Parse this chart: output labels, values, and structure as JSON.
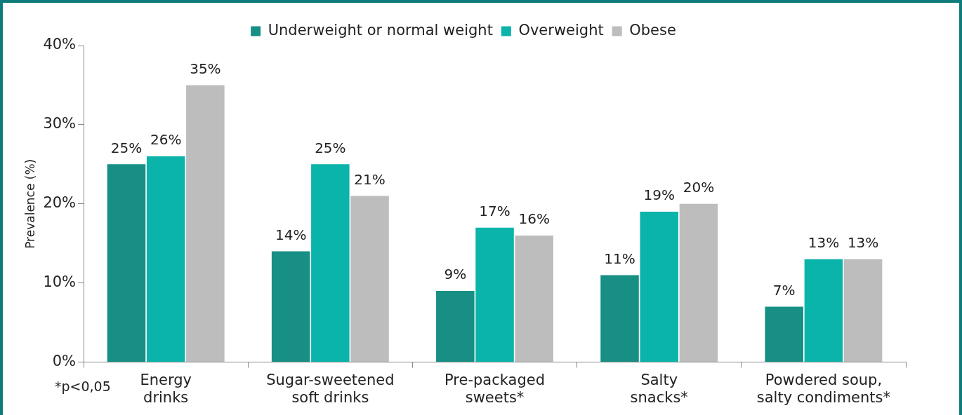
{
  "chart_data": {
    "type": "bar",
    "categories": [
      "Energy drinks",
      "Sugar-sweetened soft drinks",
      "Pre-packaged sweets*",
      "Salty snacks*",
      "Powdered soup, salty condiments*"
    ],
    "ylabel": "Prevalence (%)",
    "ylim": [
      0,
      40
    ],
    "yticks": [
      {
        "value": 0,
        "label": "0%"
      },
      {
        "value": 10,
        "label": "10%"
      },
      {
        "value": 20,
        "label": "20%"
      },
      {
        "value": 30,
        "label": "30%"
      },
      {
        "value": 40,
        "label": "40%"
      }
    ],
    "series": [
      {
        "name": "Underweight or normal weight",
        "color": "#178f84",
        "values": [
          25,
          14,
          9,
          11,
          7
        ],
        "value_labels": [
          "25%",
          "14%",
          "9%",
          "11%",
          "7%"
        ]
      },
      {
        "name": "Overweight",
        "color": "#0bb4ab",
        "values": [
          26,
          25,
          17,
          19,
          13
        ],
        "value_labels": [
          "26%",
          "25%",
          "17%",
          "19%",
          "13%"
        ]
      },
      {
        "name": "Obese",
        "color": "#bdbdbd",
        "values": [
          35,
          21,
          16,
          20,
          13
        ],
        "value_labels": [
          "35%",
          "21%",
          "16%",
          "20%",
          "13%"
        ]
      }
    ],
    "grid": false,
    "legend": "top",
    "annotations": [
      "*p<0,05"
    ]
  }
}
